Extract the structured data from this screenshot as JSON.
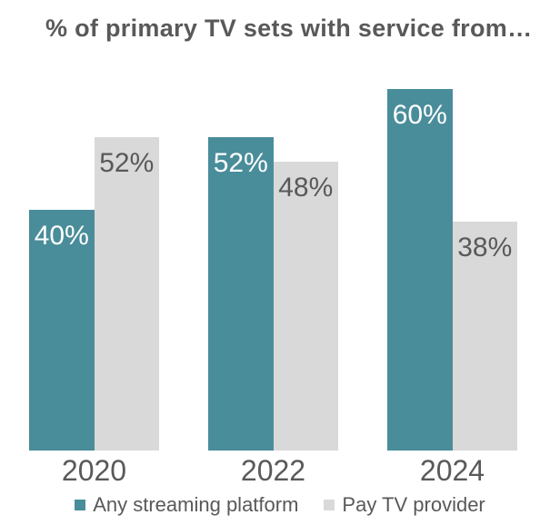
{
  "chart_data": {
    "type": "bar",
    "title": "% of primary TV sets with service from…",
    "categories": [
      "2020",
      "2022",
      "2024"
    ],
    "series": [
      {
        "name": "Any streaming platform",
        "color": "#4a8d9a",
        "label_color": "#ffffff",
        "values": [
          40,
          52,
          60
        ]
      },
      {
        "name": "Pay TV provider",
        "color": "#d9d9d9",
        "label_color": "#595959",
        "values": [
          52,
          48,
          38
        ]
      }
    ],
    "value_suffix": "%",
    "data_labels": [
      "40%",
      "52%",
      "60%",
      "52%",
      "48%",
      "38%"
    ],
    "xlabel": "",
    "ylabel": "",
    "ylim": [
      0,
      65
    ],
    "grid": false,
    "legend_position": "bottom",
    "text_color": "#595959",
    "background_color": "#ffffff"
  }
}
